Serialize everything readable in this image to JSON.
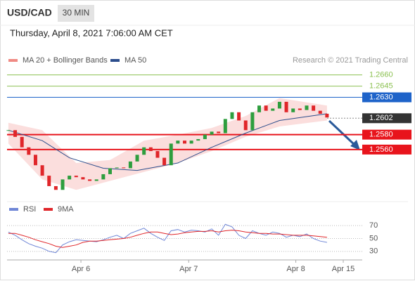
{
  "header": {
    "symbol": "USD/CAD",
    "interval": "30 MIN",
    "timestamp": "Thursday, April 8, 2021 7:06:00 AM CET",
    "source": "Research © 2021 Trading Central"
  },
  "chart_data": [
    {
      "type": "candlestick",
      "values": [
        1.2586,
        1.2577,
        1.2563,
        1.2553,
        1.2539,
        1.2525,
        1.2511,
        1.2506,
        1.252,
        1.2525,
        1.2523,
        1.252,
        1.2518,
        1.252,
        1.2527,
        1.2535,
        1.2536,
        1.2535,
        1.2544,
        1.2553,
        1.2563,
        1.2558,
        1.2549,
        1.2539,
        1.2568,
        1.2572,
        1.2568,
        1.2572,
        1.2574,
        1.258,
        1.2584,
        1.2582,
        1.2601,
        1.261,
        1.2599,
        1.2586,
        1.261,
        1.2619,
        1.2612,
        1.2615,
        1.2624,
        1.261,
        1.2615,
        1.2613,
        1.2619,
        1.2612,
        1.2608,
        1.2603
      ],
      "up_color": "#2e9e3e",
      "down_color": "#e0262a",
      "series": [
        {
          "name": "MA 20 + Bollinger Bands",
          "color": "#f08a84",
          "x": [
            0,
            5,
            10,
            15,
            20,
            25,
            30,
            35,
            40,
            47
          ],
          "upper": [
            1.2596,
            1.2586,
            1.2542,
            1.2546,
            1.2572,
            1.258,
            1.2589,
            1.2605,
            1.2629,
            1.2619
          ],
          "lower": [
            1.2568,
            1.252,
            1.2506,
            1.2518,
            1.253,
            1.2542,
            1.2558,
            1.2577,
            1.2591,
            1.2599
          ]
        },
        {
          "name": "MA 50",
          "color": "#2b4d8c",
          "x": [
            0,
            5,
            9,
            14,
            19,
            25,
            30,
            35,
            40,
            47
          ],
          "values": [
            1.2586,
            1.2572,
            1.2549,
            1.2535,
            1.2532,
            1.2542,
            1.2563,
            1.2582,
            1.2599,
            1.2608
          ]
        }
      ],
      "levels": [
        {
          "value": 1.266,
          "label": "1.2660",
          "color": "#8cc152",
          "label_style": "text"
        },
        {
          "value": 1.2645,
          "label": "1.2645",
          "color": "#8cc152",
          "label_style": "text"
        },
        {
          "value": 1.263,
          "label": "1.2630",
          "color": "#1e63c9",
          "label_style": "box"
        },
        {
          "value": 1.2602,
          "label": "1.2602",
          "color": "#333333",
          "label_style": "box"
        },
        {
          "value": 1.258,
          "label": "1.2580",
          "color": "#e8141c",
          "label_style": "box"
        },
        {
          "value": 1.256,
          "label": "1.2560",
          "color": "#e8141c",
          "label_style": "box"
        }
      ],
      "xlim": [
        -0.2,
        52.2
      ],
      "ylim": [
        1.2494,
        1.2671
      ]
    },
    {
      "type": "line",
      "series": [
        {
          "name": "RSI",
          "color": "#6f86d6",
          "values": [
            60,
            55,
            48,
            42,
            38,
            35,
            30,
            28,
            40,
            45,
            48,
            47,
            46,
            45,
            48,
            52,
            55,
            50,
            58,
            62,
            66,
            58,
            52,
            47,
            62,
            64,
            60,
            63,
            62,
            60,
            65,
            55,
            72,
            68,
            55,
            50,
            62,
            58,
            55,
            60,
            58,
            52,
            55,
            53,
            57,
            50,
            46,
            44
          ]
        },
        {
          "name": "9MA",
          "color": "#e0262a",
          "values": [
            58,
            58,
            55,
            52,
            48,
            45,
            42,
            38,
            36,
            38,
            40,
            44,
            46,
            46,
            47,
            48,
            49,
            50,
            52,
            55,
            58,
            60,
            60,
            58,
            56,
            57,
            59,
            60,
            61,
            61,
            62,
            60,
            62,
            63,
            62,
            60,
            59,
            58,
            58,
            57,
            57,
            56,
            55,
            55,
            55,
            54,
            53,
            52
          ]
        }
      ],
      "xlim": [
        -0.2,
        52.2
      ],
      "ylim": [
        20,
        80
      ],
      "yticks": [
        70,
        50,
        30
      ],
      "xticks": [
        {
          "value": 10.7,
          "label": "Apr 6"
        },
        {
          "value": 26.6,
          "label": "Apr 7"
        },
        {
          "value": 42.4,
          "label": "Apr 8"
        },
        {
          "value": 49.4,
          "label": "Apr 15"
        }
      ]
    }
  ]
}
